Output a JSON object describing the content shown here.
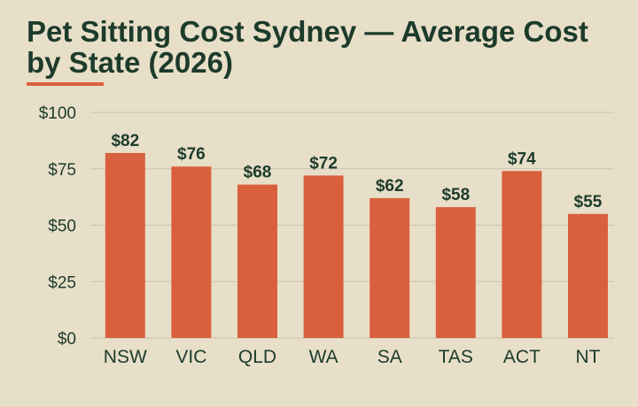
{
  "colors": {
    "background": "#e8dfc9",
    "bar": "#d9603d",
    "accent": "#d9603d",
    "text": "#1c3b2b",
    "grid": "#cdc3ad"
  },
  "chart_data": {
    "type": "bar",
    "title": "Pet Sitting Cost Sydney — Average Cost by State (2026)",
    "categories": [
      "NSW",
      "VIC",
      "QLD",
      "WA",
      "SA",
      "TAS",
      "ACT",
      "NT"
    ],
    "values": [
      82,
      76,
      68,
      72,
      62,
      58,
      74,
      55
    ],
    "data_labels": [
      "$82",
      "$76",
      "$68",
      "$72",
      "$62",
      "$58",
      "$74",
      "$55"
    ],
    "ylim": [
      0,
      100
    ],
    "yticks": [
      0,
      25,
      50,
      75,
      100
    ],
    "ytick_labels": [
      "$0",
      "$25",
      "$50",
      "$75",
      "$100"
    ],
    "xlabel": "",
    "ylabel": "",
    "grid": true,
    "legend": "none"
  }
}
